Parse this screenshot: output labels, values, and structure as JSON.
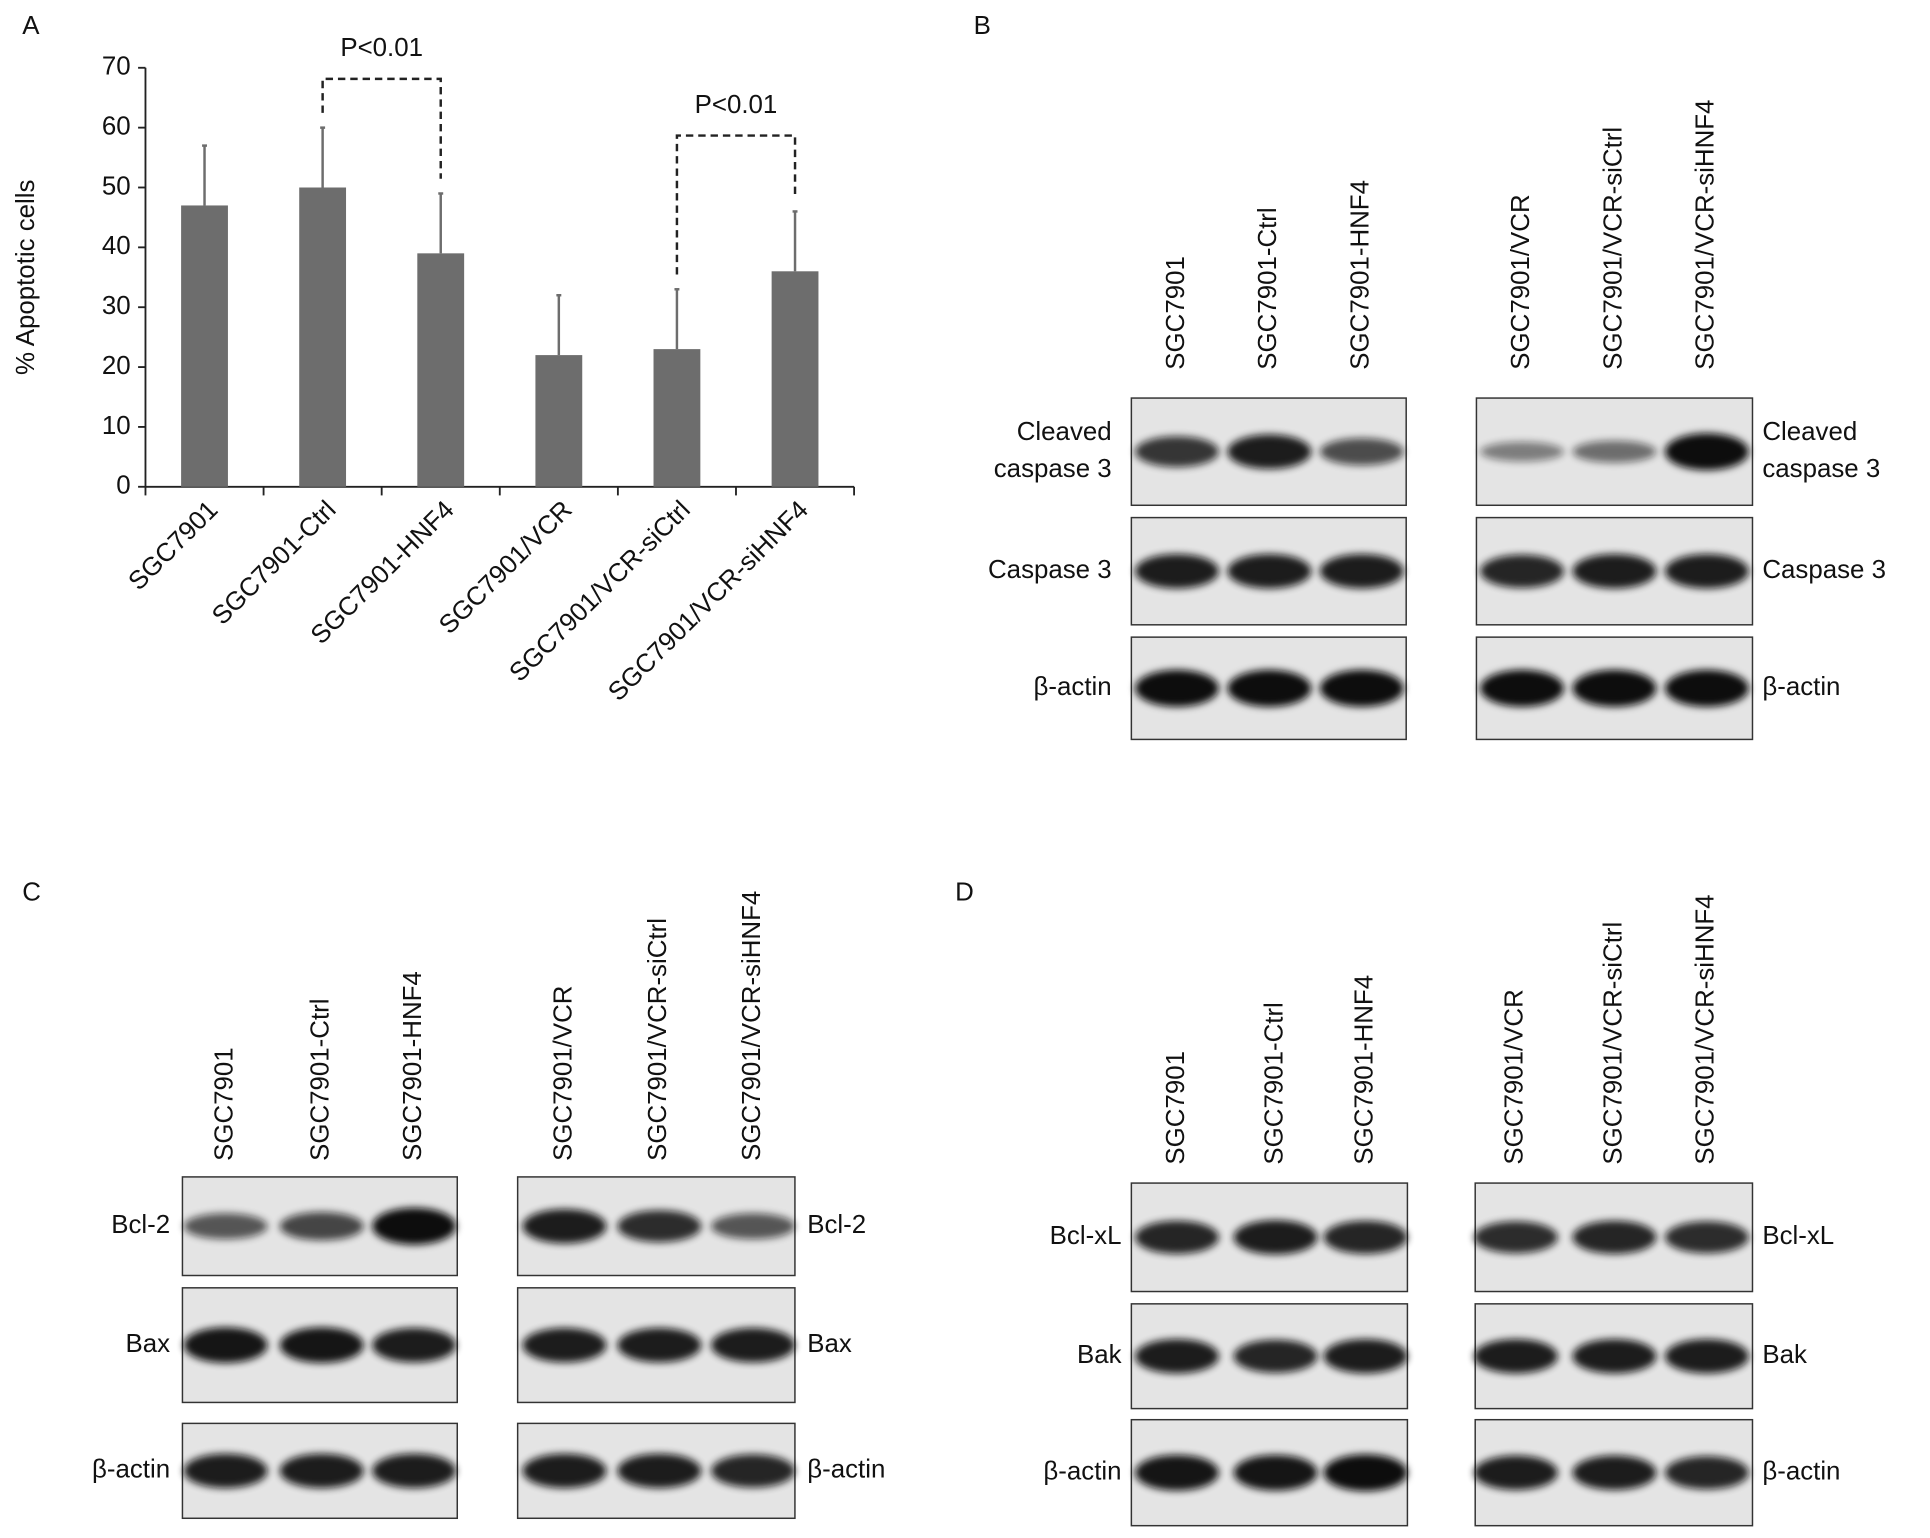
{
  "panel_labels": [
    "A",
    "B",
    "C",
    "D"
  ],
  "chart_data": {
    "type": "bar",
    "ylabel": "% Apoptotic cells",
    "categories": [
      "SGC7901",
      "SGC7901-Ctrl",
      "SGC7901-HNF4",
      "SGC7901/VCR",
      "SGC7901/VCR-siCtrl",
      "SGC7901/VCR-siHNF4"
    ],
    "values": [
      47,
      50,
      39,
      22,
      23,
      36
    ],
    "errors": [
      10,
      10,
      10,
      10,
      10,
      10
    ],
    "color": "#6d6d6d",
    "ylim": [
      0,
      70
    ],
    "yticks": [
      0,
      10,
      20,
      30,
      40,
      50,
      60,
      70
    ],
    "annotations": [
      "P<0.01",
      "P<0.01"
    ]
  },
  "blots": [
    {
      "lanes": [
        [
          "SGC7901",
          "SGC7901-Ctrl",
          "SGC7901-HNF4"
        ],
        [
          "SGC7901/VCR",
          "SGC7901/VCR-siCtrl",
          "SGC7901/VCR-siHNF4"
        ]
      ],
      "bands": [
        [
          "Cleaved",
          "caspase 3"
        ],
        [
          "Caspase 3"
        ],
        [
          "β-actin"
        ]
      ]
    },
    {
      "lanes": [
        [
          "SGC7901",
          "SGC7901-Ctrl",
          "SGC7901-HNF4"
        ],
        [
          "SGC7901/VCR",
          "SGC7901/VCR-siCtrl",
          "SGC7901/VCR-siHNF4"
        ]
      ],
      "bands": [
        [
          "Bcl-2"
        ],
        [
          "Bax"
        ],
        [
          "β-actin"
        ]
      ]
    },
    {
      "lanes": [
        [
          "SGC7901",
          "SGC7901-Ctrl",
          "SGC7901-HNF4"
        ],
        [
          "SGC7901/VCR",
          "SGC7901/VCR-siCtrl",
          "SGC7901/VCR-siHNF4"
        ]
      ],
      "bands": [
        [
          "Bcl-xL"
        ],
        [
          "Bak"
        ],
        [
          "β-actin"
        ]
      ]
    }
  ]
}
